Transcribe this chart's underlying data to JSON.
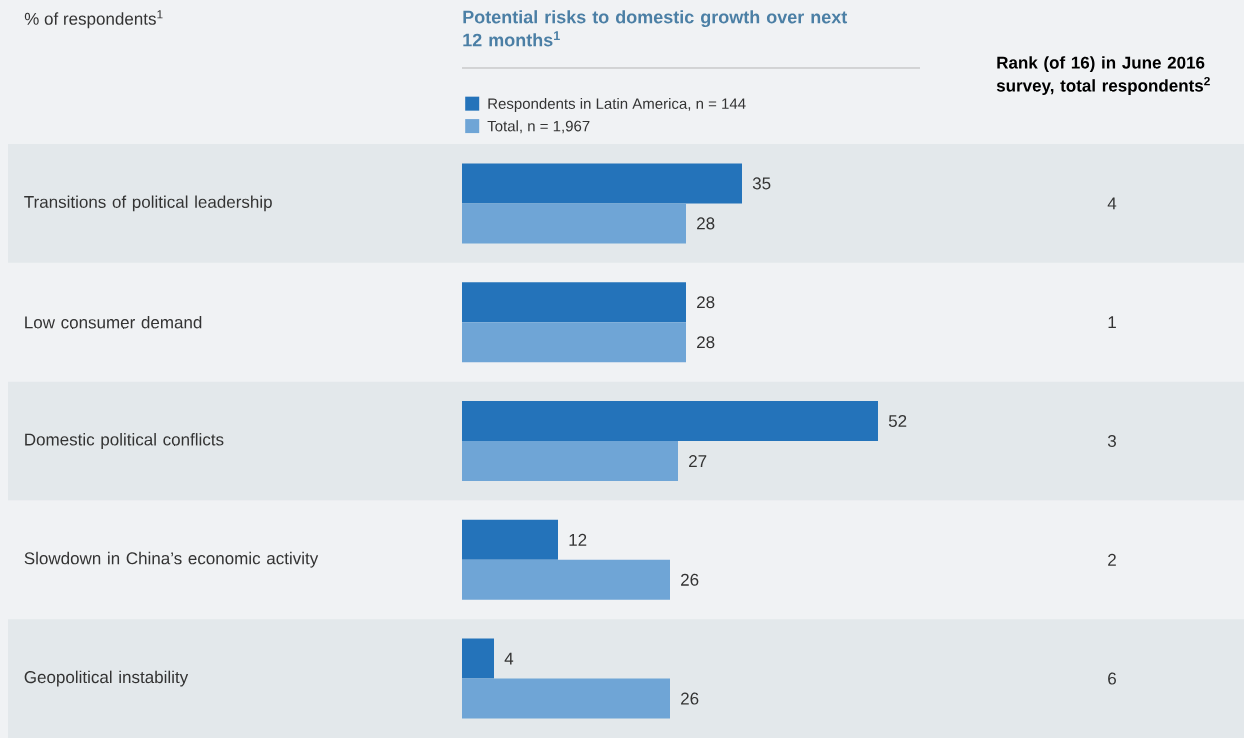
{
  "chart_data": {
    "type": "bar",
    "orientation": "horizontal",
    "title": "Potential risks to domestic growth over next 12 months$^{1}$",
    "categories": [
      "Transitions of political leadership",
      "Low consumer demand",
      "Domestic political conflicts",
      "Slowdown in China’s economic activity",
      "Geopolitical instability"
    ],
    "series": [
      {
        "name": "Respondents in Latin America, n = 144",
        "color": "#2473ba",
        "values": [
          35,
          28,
          52,
          12,
          4
        ]
      },
      {
        "name": "Total, n = 1,967",
        "color": "#6fa5d6",
        "values": [
          28,
          28,
          27,
          26,
          26
        ]
      }
    ],
    "data_labels": true,
    "legend": "top left",
    "annotations": [
      "% of respondents$^{1}$",
      "Rank (of 16) in June 2016 survey, total respondents$^{2}$",
      "4",
      "1",
      "3",
      "2",
      "6"
    ]
  }
}
